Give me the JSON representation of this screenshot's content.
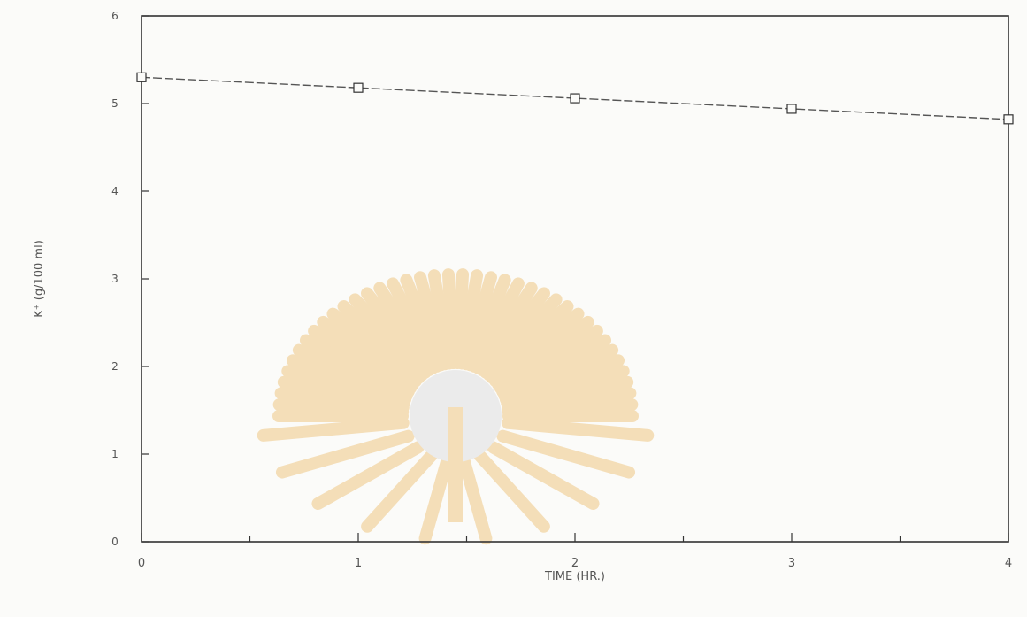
{
  "chart_data": {
    "type": "line",
    "title": "",
    "xlabel": "TIME (HR.)",
    "ylabel": "K⁺ (g/100 ml)",
    "x": [
      0,
      1,
      2,
      3,
      4
    ],
    "xlim": [
      0,
      4
    ],
    "ylim": [
      0,
      6
    ],
    "x_ticks": [
      0,
      1,
      2,
      3,
      4
    ],
    "y_ticks": [
      0,
      1,
      2,
      3,
      4,
      5,
      6
    ],
    "x_minor_ticks": [
      0.5,
      1.5,
      2.5,
      3.5
    ],
    "grid": false,
    "series": [
      {
        "name": "",
        "marker": "square",
        "values": [
          5.3,
          5.18,
          5.06,
          4.94,
          4.82
        ]
      }
    ]
  },
  "watermark": {
    "description": "university seal",
    "colors": {
      "rays": "#f3d9ad",
      "center": "#e9e9e9"
    }
  },
  "colors": {
    "line": "#555555",
    "axis": "#333333"
  }
}
